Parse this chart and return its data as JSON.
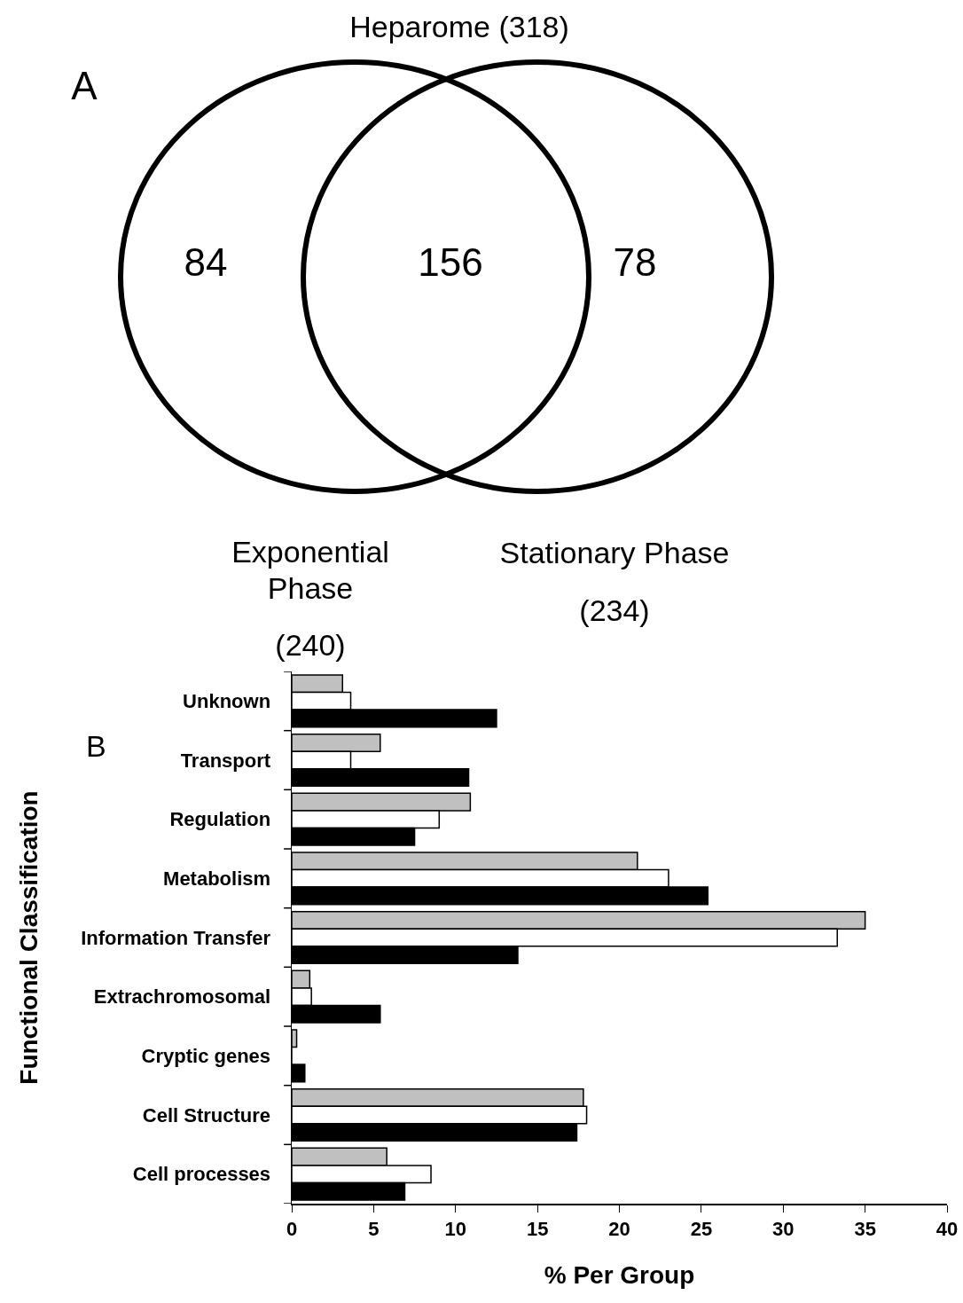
{
  "chart_data": [
    {
      "type": "other",
      "title": "Heparome (318)",
      "annotations": [
        "A",
        "84",
        "156",
        "78",
        "Exponential Phase",
        "(240)",
        "Stationary Phase",
        "(234)"
      ]
    },
    {
      "type": "bar",
      "orientation": "horizontal",
      "ylabel": "Functional Classification",
      "xlabel": "% Per Group",
      "annotations": [
        "B"
      ],
      "categories": [
        "Unknown",
        "Transport",
        "Regulation",
        "Metabolism",
        "Information Transfer",
        "Extrachromosomal",
        "Cryptic genes",
        "Cell Structure",
        "Cell processes"
      ],
      "series": [
        {
          "color": "#c0c0c0",
          "values": [
            3.1,
            5.4,
            10.9,
            21.1,
            35.0,
            1.1,
            0.3,
            17.8,
            5.8
          ]
        },
        {
          "color": "#ffffff",
          "values": [
            3.6,
            3.6,
            9.0,
            23.0,
            33.3,
            1.2,
            0,
            18.0,
            8.5
          ]
        },
        {
          "color": "#000000",
          "values": [
            12.5,
            10.8,
            7.5,
            25.4,
            13.8,
            5.4,
            0.8,
            17.4,
            6.9
          ]
        }
      ],
      "xlim": [
        0,
        40
      ],
      "xticks": [
        0,
        5,
        10,
        15,
        20,
        25,
        30,
        35,
        40
      ]
    }
  ]
}
